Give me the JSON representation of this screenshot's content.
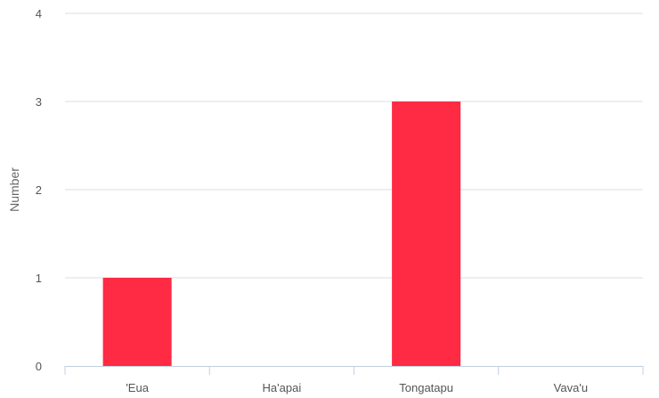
{
  "chart_data": {
    "type": "bar",
    "categories": [
      "'Eua",
      "Ha'apai",
      "Tongatapu",
      "Vava'u"
    ],
    "values": [
      1,
      0,
      3,
      0
    ],
    "title": "",
    "xlabel": "",
    "ylabel": "Number",
    "ylim": [
      0,
      4
    ],
    "yticks": [
      0,
      1,
      2,
      3,
      4
    ],
    "grid": true,
    "legend": "none",
    "colors": {
      "bar": "#ff2a44",
      "grid": "#d8dde6",
      "axis": "#c0d0e0",
      "text": "#555555"
    }
  }
}
